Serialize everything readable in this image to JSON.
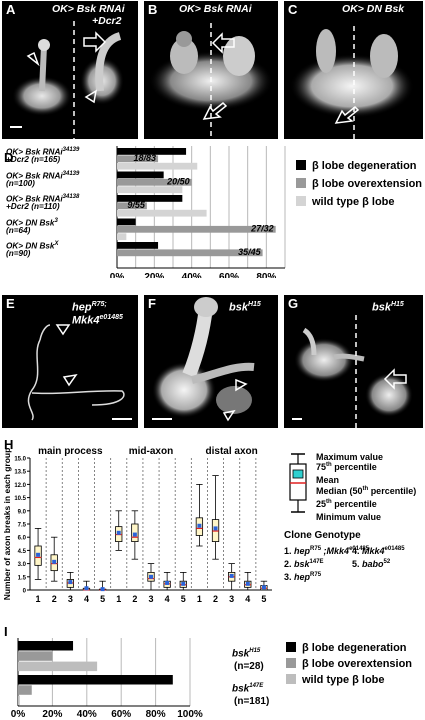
{
  "panels": {
    "A": {
      "label": "A",
      "title_line1": "OK> Bsk RNAi",
      "title_line2": "+Dcr2"
    },
    "B": {
      "label": "B",
      "title": "OK> Bsk RNAi"
    },
    "C": {
      "label": "C",
      "title": "OK> DN Bsk"
    },
    "E": {
      "label": "E",
      "title_line1_main": "hep",
      "title_line1_sup": "R75;",
      "title_line2_main": "Mkk4",
      "title_line2_sup": "e01485"
    },
    "F": {
      "label": "F",
      "title_main": "bsk",
      "title_sup": "H15"
    },
    "G": {
      "label": "G",
      "title_main": "bsk",
      "title_sup": "H15"
    }
  },
  "panel_D": {
    "label": "D",
    "rows": [
      {
        "line1": "OK> Bsk RNAi",
        "sup": "34139",
        "line2": "+Dcr2 (n=165)",
        "annotation": "18/83"
      },
      {
        "line1": "OK> Bsk RNAi",
        "sup": "34139",
        "line2": "(n=100)",
        "annotation": "20/50"
      },
      {
        "line1": "OK> Bsk RNAi",
        "sup": "34138",
        "line2": "+Dcr2 (n=110)",
        "annotation": "9/55"
      },
      {
        "line1": "OK> DN Bsk",
        "sup": "3",
        "line2": "(n=64)",
        "annotation": "27/32"
      },
      {
        "line1": "OK> DN Bsk",
        "sup": "X",
        "line2": "(n=90)",
        "annotation": "35/45"
      }
    ],
    "legend": [
      "β lobe degeneration",
      "β lobe overextension",
      "wild type β lobe"
    ],
    "colors": {
      "degeneration": "#000000",
      "overextension": "#999999",
      "wildtype": "#d4d4d4"
    }
  },
  "chart_data": [
    {
      "type": "bar",
      "panel": "D",
      "orientation": "horizontal",
      "categories": [
        "OK> Bsk RNAi 34139 +Dcr2 (n=165)",
        "OK> Bsk RNAi 34139 (n=100)",
        "OK> Bsk RNAi 34138 +Dcr2 (n=110)",
        "OK> DN Bsk 3 (n=64)",
        "OK> DN Bsk X (n=90)"
      ],
      "series": [
        {
          "name": "β lobe degeneration",
          "values": [
            37,
            25,
            35,
            10,
            22
          ]
        },
        {
          "name": "β lobe overextension",
          "values": [
            22,
            40,
            16,
            85,
            78
          ]
        },
        {
          "name": "wild type β lobe",
          "values": [
            43,
            35,
            48,
            5,
            0
          ]
        }
      ],
      "xlim": [
        0,
        90
      ],
      "xticks": [
        "0%",
        "20%",
        "40%",
        "60%",
        "80%"
      ],
      "grid": true,
      "legend": "right"
    },
    {
      "type": "box",
      "panel": "H",
      "title": "",
      "ylabel": "Number of axon breaks in each group",
      "ylim": [
        0,
        15
      ],
      "yticks": [
        "0",
        "1.5",
        "3.0",
        "4.5",
        "6.0",
        "7.5",
        "9.0",
        "10.5",
        "12.0",
        "13.5",
        "15.0"
      ],
      "groups": [
        "main process",
        "mid-axon",
        "distal axon"
      ],
      "categories": [
        "1",
        "2",
        "3",
        "4",
        "5"
      ],
      "boxes": [
        {
          "group": "main process",
          "genotype": "1",
          "min": 1.2,
          "q1": 2.8,
          "median": 3.7,
          "mean": 4.0,
          "q3": 5.0,
          "max": 7.0
        },
        {
          "group": "main process",
          "genotype": "2",
          "min": 1.0,
          "q1": 2.2,
          "median": 3.0,
          "mean": 3.2,
          "q3": 4.0,
          "max": 6.0
        },
        {
          "group": "main process",
          "genotype": "3",
          "min": 0,
          "q1": 0.3,
          "median": 0.8,
          "mean": 0.9,
          "q3": 1.2,
          "max": 2.0
        },
        {
          "group": "main process",
          "genotype": "4",
          "min": 0,
          "q1": 0,
          "median": 0,
          "mean": 0.2,
          "q3": 0.2,
          "max": 1.0
        },
        {
          "group": "main process",
          "genotype": "5",
          "min": 0,
          "q1": 0,
          "median": 0,
          "mean": 0.1,
          "q3": 0.1,
          "max": 1.0
        },
        {
          "group": "mid-axon",
          "genotype": "1",
          "min": 4.5,
          "q1": 5.5,
          "median": 6.3,
          "mean": 6.5,
          "q3": 7.2,
          "max": 9.0
        },
        {
          "group": "mid-axon",
          "genotype": "2",
          "min": 3.5,
          "q1": 5.5,
          "median": 6.0,
          "mean": 6.3,
          "q3": 7.5,
          "max": 9.0
        },
        {
          "group": "mid-axon",
          "genotype": "3",
          "min": 0,
          "q1": 1.0,
          "median": 1.3,
          "mean": 1.5,
          "q3": 2.0,
          "max": 3.0
        },
        {
          "group": "mid-axon",
          "genotype": "4",
          "min": 0,
          "q1": 0.3,
          "median": 0.7,
          "mean": 0.8,
          "q3": 1.0,
          "max": 2.0
        },
        {
          "group": "mid-axon",
          "genotype": "5",
          "min": 0,
          "q1": 0.3,
          "median": 0.6,
          "mean": 0.7,
          "q3": 1.0,
          "max": 2.0
        },
        {
          "group": "distal axon",
          "genotype": "1",
          "min": 5.0,
          "q1": 6.2,
          "median": 7.0,
          "mean": 7.3,
          "q3": 8.2,
          "max": 12.0
        },
        {
          "group": "distal axon",
          "genotype": "2",
          "min": 3.5,
          "q1": 5.5,
          "median": 6.7,
          "mean": 7.0,
          "q3": 8.0,
          "max": 13.0
        },
        {
          "group": "distal axon",
          "genotype": "3",
          "min": 0,
          "q1": 1.0,
          "median": 1.5,
          "mean": 1.6,
          "q3": 2.0,
          "max": 3.0
        },
        {
          "group": "distal axon",
          "genotype": "4",
          "min": 0,
          "q1": 0.3,
          "median": 0.6,
          "mean": 0.7,
          "q3": 1.0,
          "max": 2.0
        },
        {
          "group": "distal axon",
          "genotype": "5",
          "min": 0,
          "q1": 0,
          "median": 0.2,
          "mean": 0.3,
          "q3": 0.5,
          "max": 1.0
        }
      ]
    },
    {
      "type": "bar",
      "panel": "I",
      "orientation": "horizontal",
      "categories": [
        "bsk H15 (n=28)",
        "bsk 147E (n=181)"
      ],
      "series": [
        {
          "name": "β lobe degeneration",
          "values": [
            32,
            90
          ]
        },
        {
          "name": "β lobe overextension",
          "values": [
            20,
            8
          ]
        },
        {
          "name": "wild type β lobe",
          "values": [
            46,
            1
          ]
        }
      ],
      "xlim": [
        0,
        100
      ],
      "xticks": [
        "0%",
        "20%",
        "40%",
        "60%",
        "80%",
        "100%"
      ],
      "grid": true,
      "legend": "right"
    }
  ],
  "panel_H": {
    "label": "H",
    "ylabel": "Number of axon breaks in each group",
    "groups": [
      "main process",
      "mid-axon",
      "distal axon"
    ],
    "key": {
      "max": "Maximum value",
      "p75": "75",
      "p75_sup": "th",
      "p75_suffix": " percentile",
      "mean": "Mean",
      "median": "Median (50",
      "median_sup": "th",
      "median_suffix": " percentile)",
      "p25": "25",
      "p25_sup": "th",
      "p25_suffix": " percentile",
      "min": "Minimum value"
    },
    "clone_title": "Clone Genotype",
    "clones": [
      {
        "num": "1. ",
        "main": "hep",
        "sup": "R75",
        "rest": " ;Mkk4",
        "sup2": "e01485"
      },
      {
        "num": "2. ",
        "main": "bsk",
        "sup": "147E",
        "rest": "",
        "sup2": ""
      },
      {
        "num": "3. ",
        "main": "hep",
        "sup": "R75",
        "rest": "",
        "sup2": ""
      },
      {
        "num": "4. ",
        "main": "Mkk4",
        "sup": "e01485",
        "rest": "",
        "sup2": ""
      },
      {
        "num": "5. ",
        "main": "babo",
        "sup": "52",
        "rest": "",
        "sup2": ""
      }
    ],
    "colors": {
      "box_fill": "#fff6c8",
      "mean": "#2b63d9",
      "median": "#e02020",
      "mean_key": "#2fd0d0"
    }
  },
  "panel_I": {
    "label": "I",
    "rows": [
      {
        "main": "bsk",
        "sup": "H15",
        "n": "(n=28)"
      },
      {
        "main": "bsk",
        "sup": "147E",
        "n": "(n=181)"
      }
    ],
    "legend": [
      "β lobe degeneration",
      "β lobe overextension",
      "wild type β lobe"
    ],
    "colors": {
      "degeneration": "#000000",
      "overextension": "#999999",
      "wildtype": "#bdbdbd"
    }
  }
}
